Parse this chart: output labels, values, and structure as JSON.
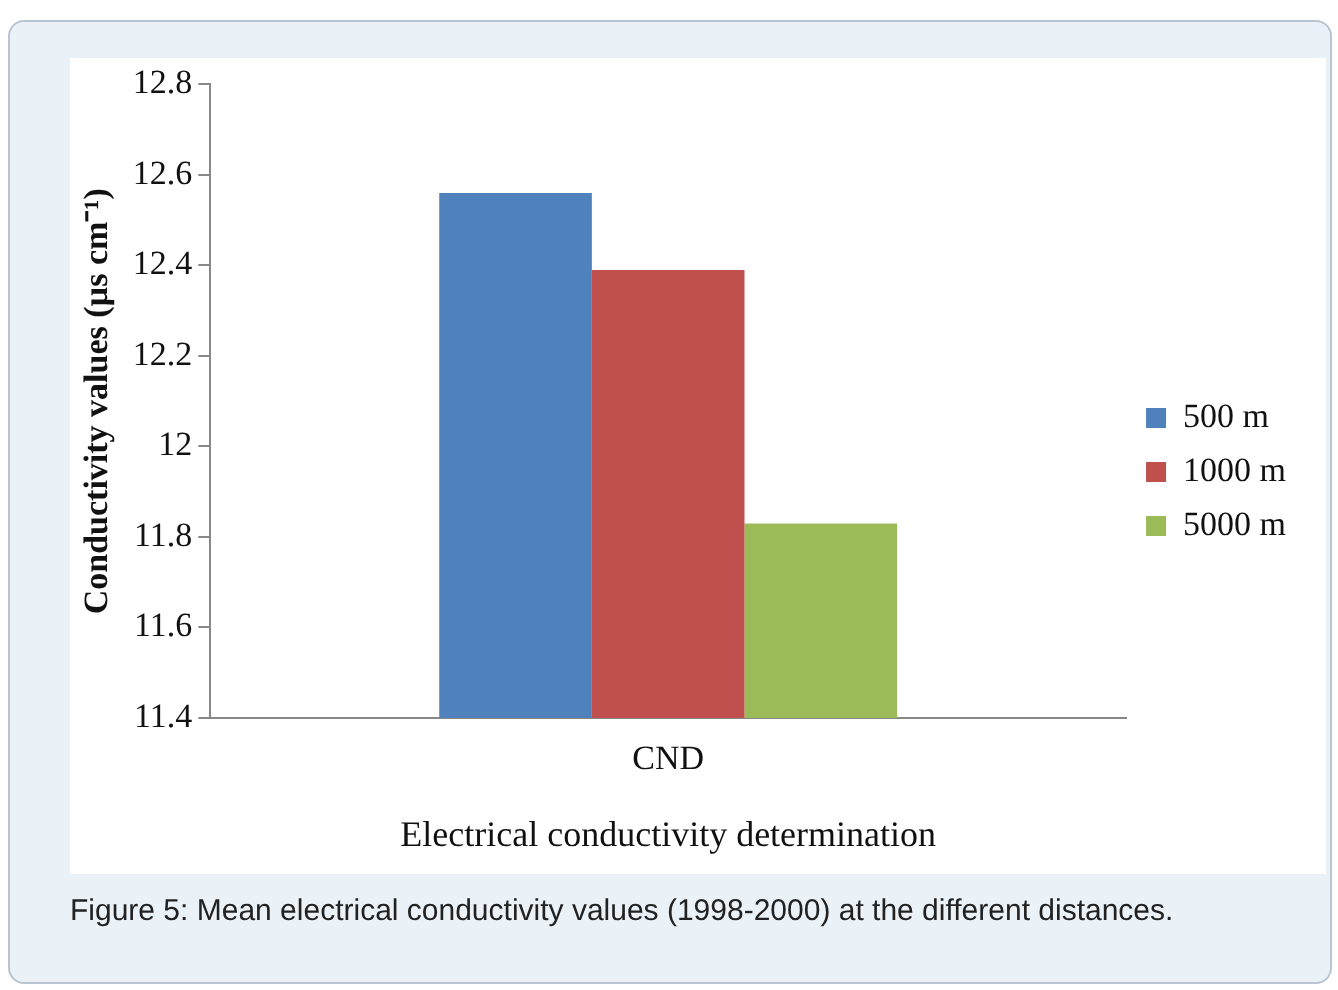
{
  "chart_data": {
    "type": "bar",
    "xlabel": "Electrical conductivity determination",
    "ylabel": "Conductivity values (µs cm⁻¹)",
    "categories": [
      "CND"
    ],
    "series": [
      {
        "name": "500 m",
        "color": "#4f81bd",
        "values": [
          12.56
        ]
      },
      {
        "name": "1000 m",
        "color": "#c0504d",
        "values": [
          12.39
        ]
      },
      {
        "name": "5000 m",
        "color": "#9bbb59",
        "values": [
          11.83
        ]
      }
    ],
    "ylim": [
      11.4,
      12.8
    ],
    "yticks": [
      11.4,
      11.6,
      11.8,
      12,
      12.2,
      12.4,
      12.6,
      12.8
    ],
    "grid": false,
    "legend": "right",
    "annotations": [
      "Figure 5: Mean electrical conductivity values (1998-2000) at the different distances."
    ]
  }
}
